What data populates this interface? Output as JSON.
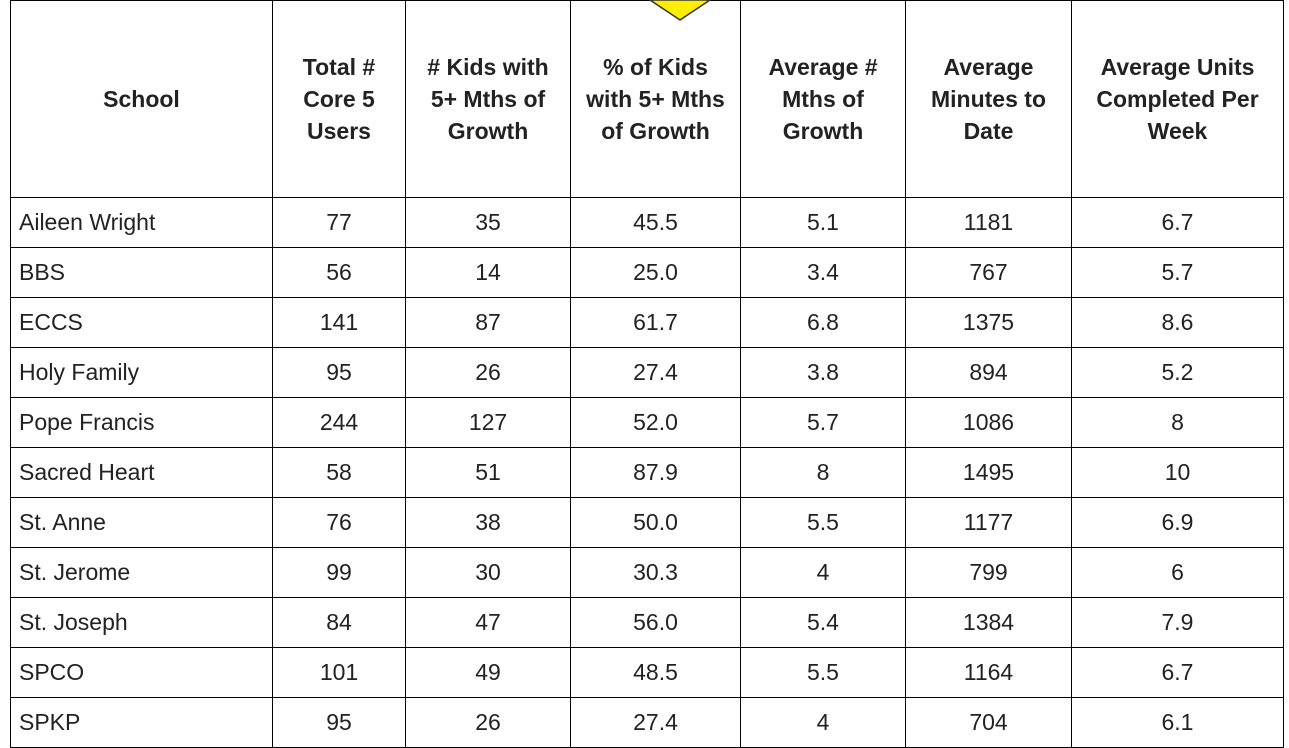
{
  "table": {
    "header": [
      "School",
      "Total # Core 5 Users",
      "# Kids with 5+ Mths of Growth",
      "% of Kids with 5+ Mths of Growth",
      "Average # Mths of Growth",
      "Average Minutes to Date",
      "Average Units Completed Per Week"
    ],
    "rows": [
      [
        "Aileen Wright",
        "77",
        "35",
        "45.5",
        "5.1",
        "1181",
        "6.7"
      ],
      [
        "BBS",
        "56",
        "14",
        "25.0",
        "3.4",
        "767",
        "5.7"
      ],
      [
        "ECCS",
        "141",
        "87",
        "61.7",
        "6.8",
        "1375",
        "8.6"
      ],
      [
        "Holy Family",
        "95",
        "26",
        "27.4",
        "3.8",
        "894",
        "5.2"
      ],
      [
        "Pope Francis",
        "244",
        "127",
        "52.0",
        "5.7",
        "1086",
        "8"
      ],
      [
        "Sacred Heart",
        "58",
        "51",
        "87.9",
        "8",
        "1495",
        "10"
      ],
      [
        "St. Anne",
        "76",
        "38",
        "50.0",
        "5.5",
        "1177",
        "6.9"
      ],
      [
        "St. Jerome",
        "99",
        "30",
        "30.3",
        "4",
        "799",
        "6"
      ],
      [
        "St. Joseph",
        "84",
        "47",
        "56.0",
        "5.4",
        "1384",
        "7.9"
      ],
      [
        "SPCO",
        "101",
        "49",
        "48.5",
        "5.5",
        "1164",
        "6.7"
      ],
      [
        "SPKP",
        "95",
        "26",
        "27.4",
        "4",
        "704",
        "6.1"
      ]
    ]
  }
}
